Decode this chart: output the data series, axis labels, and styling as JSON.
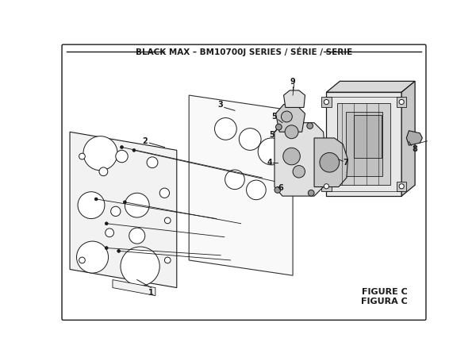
{
  "title": "BLACK MAX – BM10700J SERIES / SÉRIE / SERIE",
  "figure_label": "FIGURE C",
  "figure_label2": "FIGURA C",
  "bg_color": "#ffffff",
  "line_color": "#1a1a1a",
  "fill_light": "#f2f2f2",
  "fill_mid": "#e0e0e0",
  "fill_dark": "#cccccc",
  "title_fontsize": 7.5,
  "label_fontsize": 7,
  "figure_fontsize": 8
}
